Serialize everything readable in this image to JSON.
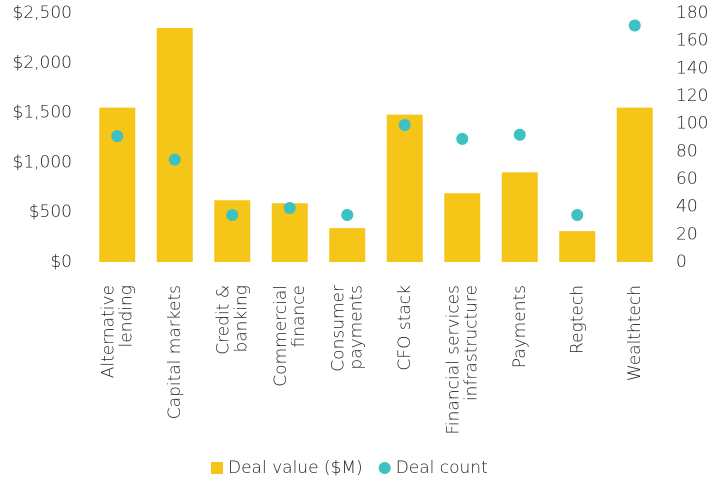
{
  "chart_data": {
    "type": "bar",
    "categories": [
      [
        "Alternative",
        "lending"
      ],
      [
        "Capital markets"
      ],
      [
        "Credit &",
        "banking"
      ],
      [
        "Commercial",
        "finance"
      ],
      [
        "Consumer",
        "payments"
      ],
      [
        "CFO stack"
      ],
      [
        "Financial services",
        "infrastructure"
      ],
      [
        "Payments"
      ],
      [
        "Regtech"
      ],
      [
        "Wealthtech"
      ]
    ],
    "series": [
      {
        "name": "Deal value ($M)",
        "type": "bar",
        "color": "#f5c518",
        "values": [
          1550,
          2350,
          620,
          590,
          340,
          1480,
          690,
          900,
          310,
          1550
        ]
      },
      {
        "name": "Deal count",
        "type": "scatter",
        "axis": "y2",
        "color": "#3ec1c1",
        "values": [
          91,
          74,
          34,
          39,
          34,
          99,
          89,
          92,
          34,
          171
        ]
      }
    ],
    "ylim": [
      0,
      2500
    ],
    "yticks": [
      {
        "value": 0,
        "label": "$0"
      },
      {
        "value": 500,
        "label": "$500"
      },
      {
        "value": 1000,
        "label": "$1,000"
      },
      {
        "value": 1500,
        "label": "$1,500"
      },
      {
        "value": 2000,
        "label": "$2,000"
      },
      {
        "value": 2500,
        "label": "$2,500"
      }
    ],
    "y2lim": [
      0,
      180
    ],
    "y2ticks": [
      0,
      20,
      40,
      60,
      80,
      100,
      120,
      140,
      160,
      180
    ],
    "grid": false,
    "legend": "bottom"
  }
}
